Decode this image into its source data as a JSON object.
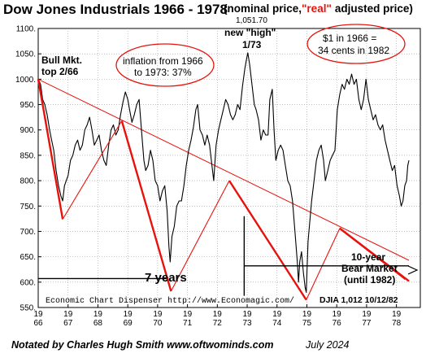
{
  "chart_data": {
    "type": "line",
    "title": "Dow Jones Industrials 1966 - 1978",
    "subtitle_prefix": "(nominal price,",
    "subtitle_red": "\"real\"",
    "subtitle_suffix": "adjusted price)",
    "ylim": [
      550,
      1100
    ],
    "xlim": [
      1966,
      1978.8
    ],
    "y_ticks": [
      550,
      600,
      650,
      700,
      750,
      800,
      850,
      900,
      950,
      1000,
      1050,
      1100
    ],
    "y_tick_labels": [
      "550.",
      "600.",
      "650.",
      "700.",
      "750.",
      "800.",
      "850.",
      "900.",
      "950.",
      "1000.",
      "1050.",
      "1100."
    ],
    "x_tick_labels": [
      {
        "top": "19",
        "bottom": "66",
        "x": 1966
      },
      {
        "top": "19",
        "bottom": "67",
        "x": 1967
      },
      {
        "top": "19",
        "bottom": "68",
        "x": 1968
      },
      {
        "top": "19",
        "bottom": "69",
        "x": 1969
      },
      {
        "top": "19",
        "bottom": "70",
        "x": 1970
      },
      {
        "top": "19",
        "bottom": "71",
        "x": 1971
      },
      {
        "top": "19",
        "bottom": "72",
        "x": 1972
      },
      {
        "top": "19",
        "bottom": "73",
        "x": 1973
      },
      {
        "top": "19",
        "bottom": "74",
        "x": 1974
      },
      {
        "top": "19",
        "bottom": "75",
        "x": 1975
      },
      {
        "top": "19",
        "bottom": "76",
        "x": 1976
      },
      {
        "top": "19",
        "bottom": "77",
        "x": 1977
      },
      {
        "top": "19",
        "bottom": "78",
        "x": 1978
      }
    ],
    "grid": true,
    "series": [
      {
        "color": "#000000",
        "points": [
          [
            1966.0,
            1000
          ],
          [
            1966.08,
            990
          ],
          [
            1966.15,
            960
          ],
          [
            1966.22,
            950
          ],
          [
            1966.3,
            930
          ],
          [
            1966.38,
            900
          ],
          [
            1966.45,
            880
          ],
          [
            1966.52,
            860
          ],
          [
            1966.6,
            820
          ],
          [
            1966.68,
            790
          ],
          [
            1966.76,
            770
          ],
          [
            1966.82,
            760
          ],
          [
            1966.88,
            790
          ],
          [
            1966.94,
            800
          ],
          [
            1967.0,
            810
          ],
          [
            1967.08,
            840
          ],
          [
            1967.16,
            850
          ],
          [
            1967.24,
            870
          ],
          [
            1967.32,
            880
          ],
          [
            1967.4,
            860
          ],
          [
            1967.48,
            870
          ],
          [
            1967.56,
            900
          ],
          [
            1967.64,
            910
          ],
          [
            1967.72,
            925
          ],
          [
            1967.8,
            900
          ],
          [
            1967.88,
            870
          ],
          [
            1967.96,
            880
          ],
          [
            1968.04,
            890
          ],
          [
            1968.12,
            860
          ],
          [
            1968.2,
            840
          ],
          [
            1968.28,
            830
          ],
          [
            1968.36,
            870
          ],
          [
            1968.44,
            900
          ],
          [
            1968.52,
            910
          ],
          [
            1968.6,
            890
          ],
          [
            1968.68,
            900
          ],
          [
            1968.76,
            930
          ],
          [
            1968.84,
            955
          ],
          [
            1968.92,
            975
          ],
          [
            1969.0,
            960
          ],
          [
            1969.06,
            940
          ],
          [
            1969.14,
            915
          ],
          [
            1969.22,
            930
          ],
          [
            1969.3,
            950
          ],
          [
            1969.38,
            960
          ],
          [
            1969.46,
            900
          ],
          [
            1969.54,
            840
          ],
          [
            1969.6,
            820
          ],
          [
            1969.68,
            830
          ],
          [
            1969.76,
            860
          ],
          [
            1969.84,
            840
          ],
          [
            1969.92,
            800
          ],
          [
            1970.0,
            790
          ],
          [
            1970.08,
            760
          ],
          [
            1970.16,
            780
          ],
          [
            1970.24,
            790
          ],
          [
            1970.32,
            740
          ],
          [
            1970.38,
            670
          ],
          [
            1970.42,
            640
          ],
          [
            1970.48,
            690
          ],
          [
            1970.56,
            710
          ],
          [
            1970.64,
            750
          ],
          [
            1970.72,
            760
          ],
          [
            1970.8,
            760
          ],
          [
            1970.88,
            790
          ],
          [
            1970.96,
            830
          ],
          [
            1971.04,
            860
          ],
          [
            1971.12,
            880
          ],
          [
            1971.2,
            905
          ],
          [
            1971.28,
            940
          ],
          [
            1971.34,
            950
          ],
          [
            1971.42,
            900
          ],
          [
            1971.5,
            890
          ],
          [
            1971.58,
            870
          ],
          [
            1971.66,
            890
          ],
          [
            1971.74,
            870
          ],
          [
            1971.82,
            830
          ],
          [
            1971.88,
            800
          ],
          [
            1971.96,
            870
          ],
          [
            1972.04,
            900
          ],
          [
            1972.12,
            920
          ],
          [
            1972.2,
            940
          ],
          [
            1972.28,
            960
          ],
          [
            1972.36,
            950
          ],
          [
            1972.44,
            930
          ],
          [
            1972.52,
            920
          ],
          [
            1972.6,
            930
          ],
          [
            1972.68,
            950
          ],
          [
            1972.76,
            940
          ],
          [
            1972.84,
            985
          ],
          [
            1972.92,
            1020
          ],
          [
            1972.98,
            1040
          ],
          [
            1973.02,
            1052
          ],
          [
            1973.08,
            1030
          ],
          [
            1973.16,
            990
          ],
          [
            1973.24,
            950
          ],
          [
            1973.3,
            940
          ],
          [
            1973.38,
            920
          ],
          [
            1973.46,
            880
          ],
          [
            1973.54,
            900
          ],
          [
            1973.62,
            890
          ],
          [
            1973.7,
            890
          ],
          [
            1973.76,
            960
          ],
          [
            1973.84,
            980
          ],
          [
            1973.9,
            900
          ],
          [
            1973.96,
            840
          ],
          [
            1974.04,
            860
          ],
          [
            1974.12,
            870
          ],
          [
            1974.2,
            860
          ],
          [
            1974.28,
            830
          ],
          [
            1974.36,
            800
          ],
          [
            1974.44,
            790
          ],
          [
            1974.52,
            760
          ],
          [
            1974.6,
            700
          ],
          [
            1974.68,
            640
          ],
          [
            1974.72,
            600
          ],
          [
            1974.76,
            640
          ],
          [
            1974.82,
            660
          ],
          [
            1974.88,
            620
          ],
          [
            1974.94,
            590
          ],
          [
            1974.98,
            580
          ],
          [
            1975.04,
            680
          ],
          [
            1975.1,
            720
          ],
          [
            1975.16,
            760
          ],
          [
            1975.24,
            800
          ],
          [
            1975.32,
            840
          ],
          [
            1975.4,
            860
          ],
          [
            1975.48,
            870
          ],
          [
            1975.56,
            840
          ],
          [
            1975.62,
            800
          ],
          [
            1975.7,
            820
          ],
          [
            1975.78,
            840
          ],
          [
            1975.86,
            850
          ],
          [
            1975.94,
            860
          ],
          [
            1976.02,
            940
          ],
          [
            1976.1,
            970
          ],
          [
            1976.18,
            990
          ],
          [
            1976.26,
            980
          ],
          [
            1976.34,
            1000
          ],
          [
            1976.42,
            990
          ],
          [
            1976.5,
            1010
          ],
          [
            1976.58,
            990
          ],
          [
            1976.66,
            1000
          ],
          [
            1976.74,
            960
          ],
          [
            1976.82,
            940
          ],
          [
            1976.9,
            960
          ],
          [
            1976.98,
            1000
          ],
          [
            1977.06,
            960
          ],
          [
            1977.14,
            940
          ],
          [
            1977.22,
            920
          ],
          [
            1977.3,
            930
          ],
          [
            1977.38,
            910
          ],
          [
            1977.46,
            900
          ],
          [
            1977.54,
            910
          ],
          [
            1977.62,
            880
          ],
          [
            1977.7,
            860
          ],
          [
            1977.78,
            840
          ],
          [
            1977.86,
            820
          ],
          [
            1977.94,
            830
          ],
          [
            1978.02,
            790
          ],
          [
            1978.1,
            770
          ],
          [
            1978.16,
            750
          ],
          [
            1978.22,
            760
          ],
          [
            1978.28,
            790
          ],
          [
            1978.34,
            800
          ],
          [
            1978.38,
            830
          ],
          [
            1978.42,
            840
          ]
        ]
      }
    ],
    "trend_line": {
      "color": "#e8120c",
      "points": [
        [
          1966.0,
          1000
        ],
        [
          1978.42,
          643
        ]
      ]
    },
    "zigzag": {
      "color": "#e8120c",
      "points": [
        [
          1966.0,
          1000
        ],
        [
          1966.82,
          724
        ],
        [
          1968.8,
          918
        ],
        [
          1970.45,
          582
        ],
        [
          1972.4,
          800
        ],
        [
          1974.98,
          565
        ],
        [
          1976.1,
          706
        ],
        [
          1978.3,
          606
        ]
      ]
    },
    "arrow_line": {
      "color": "#e8120c",
      "points": [
        [
          1976.1,
          706
        ],
        [
          1978.42,
          602
        ]
      ]
    },
    "black_horizontals": [
      {
        "y": 607,
        "x1": 1966.0,
        "x2": 1970.3
      },
      {
        "y": 632,
        "x1": 1972.9,
        "x2": 1978.42
      }
    ],
    "black_vertical": {
      "x": 1972.9,
      "y1": 573,
      "y2": 730
    }
  },
  "annotations": {
    "bull_market_line1": "Bull Mkt.",
    "bull_market_line2": "top 2/66",
    "inflation_line1": "inflation from 1966",
    "inflation_line2": "to 1973: 37%",
    "high_value": "1,051.70",
    "high_label1": "new \"high\"",
    "high_label2": "1/73",
    "dollar_line1": "$1 in 1966 =",
    "dollar_line2": "34 cents in 1982",
    "seven_years": "7 years",
    "bear_line1": "10-year",
    "bear_line2": "Bear Market",
    "bear_line3": "(until 1982)",
    "credit": "Economic Chart Dispenser  http://www.Economagic.com/",
    "djia_note": "DJIA 1,012  10/12/82",
    "circle_color": "#e8120c"
  },
  "footer": {
    "notated": "Notated by Charles Hugh Smith   www.oftwominds.com",
    "date": "July 2024"
  }
}
